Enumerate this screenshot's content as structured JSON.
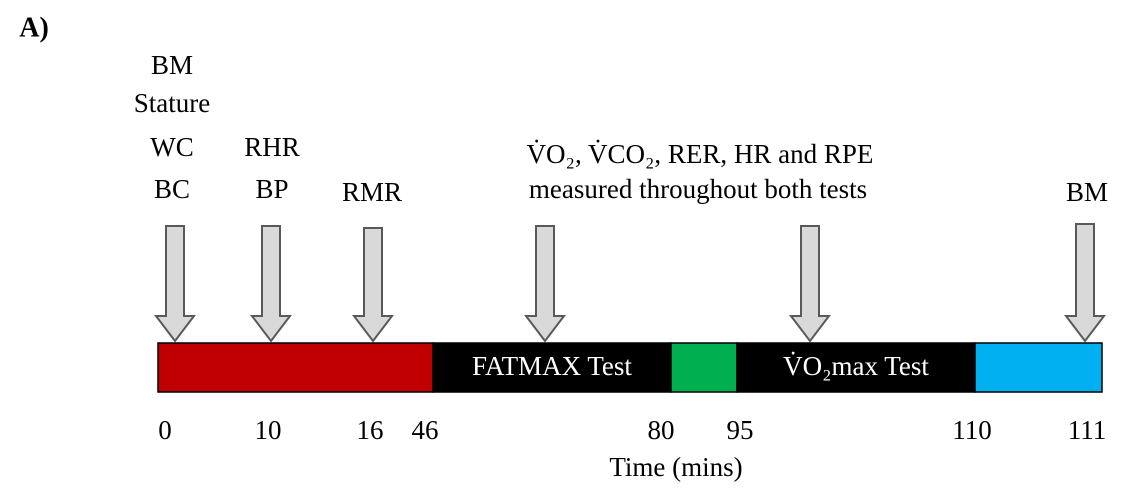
{
  "panel_label": "A)",
  "annotations": [
    {
      "lines": [
        "BM",
        "Stature",
        "WC",
        "BC"
      ]
    },
    {
      "lines": [
        "RHR",
        "BP"
      ]
    },
    {
      "lines": [
        "RMR"
      ]
    },
    {
      "lines": [
        "V̇O₂, V̇CO₂, RER, HR and RPE",
        "measured throughout both tests"
      ]
    },
    {
      "lines": [
        "BM"
      ]
    }
  ],
  "segments": [
    {
      "label": null,
      "color": "#c00000"
    },
    {
      "label": "FATMAX Test",
      "color": "#000000"
    },
    {
      "label": null,
      "color": "#00b050"
    },
    {
      "label": "V̇O₂max Test",
      "color": "#000000"
    },
    {
      "label": null,
      "color": "#00b0f0"
    }
  ],
  "ticks": [
    "0",
    "10",
    "16",
    "46",
    "80",
    "95",
    "110",
    "111"
  ],
  "axis_label": "Time (mins)"
}
